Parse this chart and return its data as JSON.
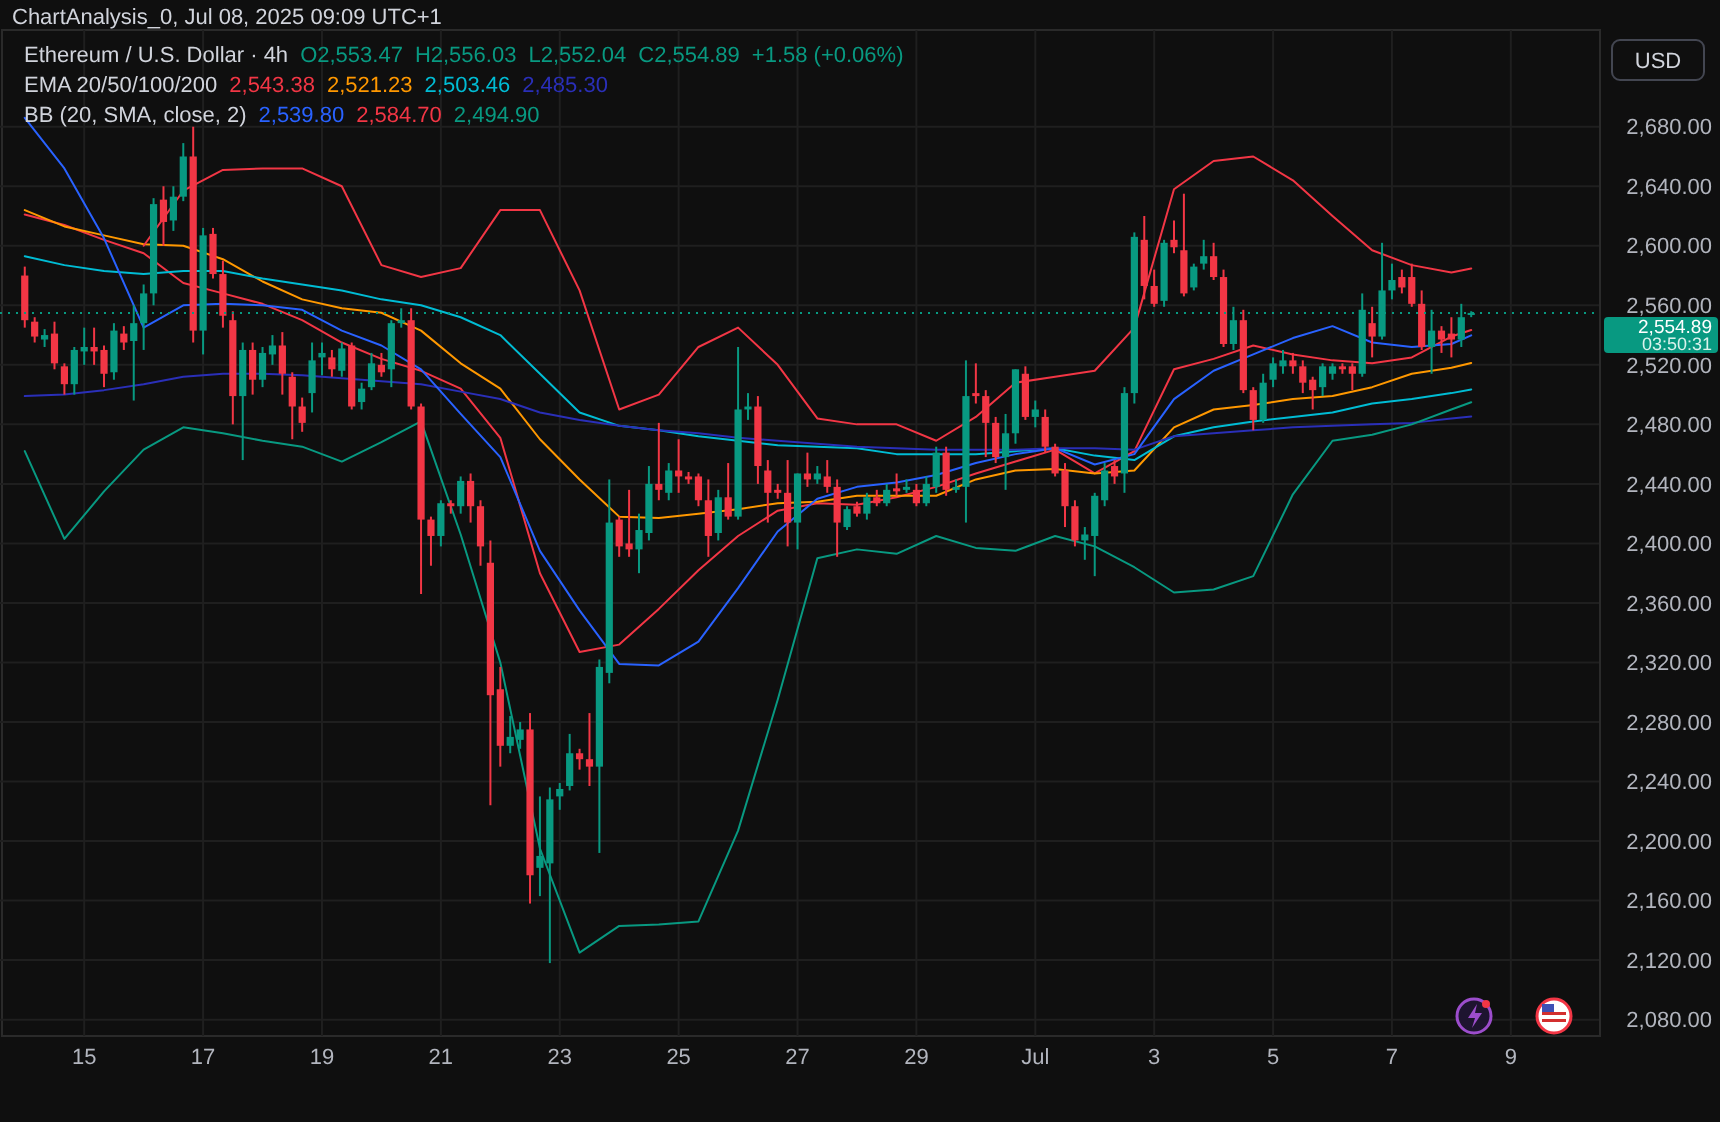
{
  "chart_data": {
    "type": "candlestick",
    "title": "Ethereum / U.S. Dollar · 4h",
    "annotations": [
      "ChartAnalysis_0, Jul 08, 2025 09:09 UTC+1",
      "O2,553.47",
      "H2,556.03",
      "L2,552.04",
      "C2,554.89",
      "+1.58 (+0.06%)",
      "EMA 20/50/100/200",
      "2,543.38",
      "2,521.23",
      "2,503.46",
      "2,485.30",
      "BB (20, SMA, close, 2)",
      "2,539.80",
      "2,584.70",
      "2,494.90",
      "03:50:31",
      "USD"
    ],
    "xlim": [
      "2025-06-13T14:00",
      "2025-07-10T12:00"
    ],
    "xticks": [
      {
        "value": "2025-06-15",
        "label": "15"
      },
      {
        "value": "2025-06-17",
        "label": "17"
      },
      {
        "value": "2025-06-19",
        "label": "19"
      },
      {
        "value": "2025-06-21",
        "label": "21"
      },
      {
        "value": "2025-06-23",
        "label": "23"
      },
      {
        "value": "2025-06-25",
        "label": "25"
      },
      {
        "value": "2025-06-27",
        "label": "27"
      },
      {
        "value": "2025-06-29",
        "label": "29"
      },
      {
        "value": "2025-07-01",
        "label": "Jul"
      },
      {
        "value": "2025-07-03",
        "label": "3"
      },
      {
        "value": "2025-07-05",
        "label": "5"
      },
      {
        "value": "2025-07-07",
        "label": "7"
      },
      {
        "value": "2025-07-09",
        "label": "9"
      }
    ],
    "ylim": [
      2069,
      2745
    ],
    "yticks": [
      {
        "value": 2080,
        "label": "2,080.00"
      },
      {
        "value": 2120,
        "label": "2,120.00"
      },
      {
        "value": 2160,
        "label": "2,160.00"
      },
      {
        "value": 2200,
        "label": "2,200.00"
      },
      {
        "value": 2240,
        "label": "2,240.00"
      },
      {
        "value": 2280,
        "label": "2,280.00"
      },
      {
        "value": 2320,
        "label": "2,320.00"
      },
      {
        "value": 2360,
        "label": "2,360.00"
      },
      {
        "value": 2400,
        "label": "2,400.00"
      },
      {
        "value": 2440,
        "label": "2,440.00"
      },
      {
        "value": 2480,
        "label": "2,480.00"
      },
      {
        "value": 2520,
        "label": "2,520.00"
      },
      {
        "value": 2560,
        "label": "2,560.00"
      },
      {
        "value": 2600,
        "label": "2,600.00"
      },
      {
        "value": 2640,
        "label": "2,640.00"
      },
      {
        "value": 2680,
        "label": "2,680.00"
      }
    ],
    "grid": true,
    "ref_lines": [
      {
        "axis": "y",
        "value": 2554.89,
        "label": "2,554.89",
        "color": "#089981",
        "line_style": "dotted"
      }
    ],
    "x": [
      "2025-06-14T00:00",
      "2025-06-14T04:00",
      "2025-06-14T08:00",
      "2025-06-14T12:00",
      "2025-06-14T16:00",
      "2025-06-14T20:00",
      "2025-06-15T00:00",
      "2025-06-15T04:00",
      "2025-06-15T08:00",
      "2025-06-15T12:00",
      "2025-06-15T16:00",
      "2025-06-15T20:00",
      "2025-06-16T00:00",
      "2025-06-16T04:00",
      "2025-06-16T08:00",
      "2025-06-16T12:00",
      "2025-06-16T16:00",
      "2025-06-16T20:00",
      "2025-06-17T00:00",
      "2025-06-17T04:00",
      "2025-06-17T08:00",
      "2025-06-17T12:00",
      "2025-06-17T16:00",
      "2025-06-17T20:00",
      "2025-06-18T00:00",
      "2025-06-18T04:00",
      "2025-06-18T08:00",
      "2025-06-18T12:00",
      "2025-06-18T16:00",
      "2025-06-18T20:00",
      "2025-06-19T00:00",
      "2025-06-19T04:00",
      "2025-06-19T08:00",
      "2025-06-19T12:00",
      "2025-06-19T16:00",
      "2025-06-19T20:00",
      "2025-06-20T00:00",
      "2025-06-20T04:00",
      "2025-06-20T08:00",
      "2025-06-20T12:00",
      "2025-06-20T16:00",
      "2025-06-20T20:00",
      "2025-06-21T00:00",
      "2025-06-21T04:00",
      "2025-06-21T08:00",
      "2025-06-21T12:00",
      "2025-06-21T16:00",
      "2025-06-21T20:00",
      "2025-06-22T00:00",
      "2025-06-22T04:00",
      "2025-06-22T08:00",
      "2025-06-22T12:00",
      "2025-06-22T16:00",
      "2025-06-22T20:00",
      "2025-06-23T00:00",
      "2025-06-23T04:00",
      "2025-06-23T08:00",
      "2025-06-23T12:00",
      "2025-06-23T16:00",
      "2025-06-23T20:00",
      "2025-06-24T00:00",
      "2025-06-24T04:00",
      "2025-06-24T08:00",
      "2025-06-24T12:00",
      "2025-06-24T16:00",
      "2025-06-24T20:00",
      "2025-06-25T00:00",
      "2025-06-25T04:00",
      "2025-06-25T08:00",
      "2025-06-25T12:00",
      "2025-06-25T16:00",
      "2025-06-25T20:00",
      "2025-06-26T00:00",
      "2025-06-26T04:00",
      "2025-06-26T08:00",
      "2025-06-26T12:00",
      "2025-06-26T16:00",
      "2025-06-26T20:00",
      "2025-06-27T00:00",
      "2025-06-27T04:00",
      "2025-06-27T08:00",
      "2025-06-27T12:00",
      "2025-06-27T16:00",
      "2025-06-27T20:00",
      "2025-06-28T00:00",
      "2025-06-28T04:00",
      "2025-06-28T08:00",
      "2025-06-28T12:00",
      "2025-06-28T16:00",
      "2025-06-28T20:00",
      "2025-06-29T00:00",
      "2025-06-29T04:00",
      "2025-06-29T08:00",
      "2025-06-29T12:00",
      "2025-06-29T16:00",
      "2025-06-29T20:00",
      "2025-06-30T00:00",
      "2025-06-30T04:00",
      "2025-06-30T08:00",
      "2025-06-30T12:00",
      "2025-06-30T16:00",
      "2025-06-30T20:00",
      "2025-07-01T00:00",
      "2025-07-01T04:00",
      "2025-07-01T08:00",
      "2025-07-01T12:00",
      "2025-07-01T16:00",
      "2025-07-01T20:00",
      "2025-07-02T00:00",
      "2025-07-02T04:00",
      "2025-07-02T08:00",
      "2025-07-02T12:00",
      "2025-07-02T16:00",
      "2025-07-02T20:00",
      "2025-07-03T00:00",
      "2025-07-03T04:00",
      "2025-07-03T08:00",
      "2025-07-03T12:00",
      "2025-07-03T16:00",
      "2025-07-03T20:00",
      "2025-07-04T00:00",
      "2025-07-04T04:00",
      "2025-07-04T08:00",
      "2025-07-04T12:00",
      "2025-07-04T16:00",
      "2025-07-04T20:00",
      "2025-07-05T00:00",
      "2025-07-05T04:00",
      "2025-07-05T08:00",
      "2025-07-05T12:00",
      "2025-07-05T16:00",
      "2025-07-05T20:00",
      "2025-07-06T00:00",
      "2025-07-06T04:00",
      "2025-07-06T08:00",
      "2025-07-06T12:00",
      "2025-07-06T16:00",
      "2025-07-06T20:00",
      "2025-07-07T00:00",
      "2025-07-07T04:00",
      "2025-07-07T08:00",
      "2025-07-07T12:00",
      "2025-07-07T16:00",
      "2025-07-07T20:00",
      "2025-07-08T00:00",
      "2025-07-08T04:00",
      "2025-07-08T08:00"
    ],
    "ohlc": [
      [
        2580,
        2586,
        2545,
        2550
      ],
      [
        2549,
        2552,
        2535,
        2539
      ],
      [
        2537,
        2544,
        2532,
        2540
      ],
      [
        2541,
        2549,
        2517,
        2521
      ],
      [
        2519,
        2521,
        2500,
        2507
      ],
      [
        2507,
        2532,
        2500,
        2530
      ],
      [
        2529,
        2545,
        2520,
        2532
      ],
      [
        2532,
        2545,
        2520,
        2529
      ],
      [
        2530,
        2533,
        2505,
        2514
      ],
      [
        2515,
        2548,
        2510,
        2543
      ],
      [
        2541,
        2546,
        2530,
        2535
      ],
      [
        2536,
        2560,
        2496,
        2548
      ],
      [
        2548,
        2574,
        2530,
        2568
      ],
      [
        2568,
        2632,
        2560,
        2628
      ],
      [
        2631,
        2640,
        2600,
        2616
      ],
      [
        2617,
        2640,
        2610,
        2633
      ],
      [
        2633,
        2669,
        2630,
        2660
      ],
      [
        2660,
        2680,
        2535,
        2543
      ],
      [
        2543,
        2612,
        2527,
        2607
      ],
      [
        2608,
        2612,
        2578,
        2581
      ],
      [
        2581,
        2590,
        2545,
        2553
      ],
      [
        2550,
        2556,
        2480,
        2499
      ],
      [
        2499,
        2535,
        2456,
        2530
      ],
      [
        2530,
        2535,
        2500,
        2510
      ],
      [
        2510,
        2532,
        2505,
        2528
      ],
      [
        2527,
        2540,
        2520,
        2533
      ],
      [
        2533,
        2542,
        2500,
        2514
      ],
      [
        2512,
        2515,
        2470,
        2492
      ],
      [
        2492,
        2498,
        2475,
        2481
      ],
      [
        2501,
        2535,
        2488,
        2523
      ],
      [
        2525,
        2535,
        2513,
        2528
      ],
      [
        2525,
        2530,
        2512,
        2517
      ],
      [
        2516,
        2535,
        2512,
        2531
      ],
      [
        2533,
        2535,
        2490,
        2492
      ],
      [
        2495,
        2508,
        2490,
        2504
      ],
      [
        2505,
        2528,
        2503,
        2521
      ],
      [
        2520,
        2528,
        2512,
        2515
      ],
      [
        2517,
        2550,
        2505,
        2548
      ],
      [
        2548,
        2558,
        2545,
        2550
      ],
      [
        2550,
        2558,
        2490,
        2492
      ],
      [
        2492,
        2494,
        2366,
        2416
      ],
      [
        2416,
        2418,
        2385,
        2405
      ],
      [
        2405,
        2429,
        2398,
        2427
      ],
      [
        2427,
        2429,
        2420,
        2425
      ],
      [
        2425,
        2445,
        2420,
        2442
      ],
      [
        2442,
        2447,
        2414,
        2425
      ],
      [
        2425,
        2429,
        2385,
        2398
      ],
      [
        2387,
        2402,
        2224,
        2298
      ],
      [
        2302,
        2317,
        2250,
        2264
      ],
      [
        2264,
        2284,
        2259,
        2270
      ],
      [
        2268,
        2280,
        2262,
        2275
      ],
      [
        2275,
        2286,
        2158,
        2177
      ],
      [
        2182,
        2230,
        2163,
        2190
      ],
      [
        2185,
        2236,
        2118,
        2228
      ],
      [
        2230,
        2239,
        2221,
        2235
      ],
      [
        2237,
        2272,
        2234,
        2259
      ],
      [
        2259,
        2262,
        2248,
        2255
      ],
      [
        2255,
        2286,
        2237,
        2250
      ],
      [
        2250,
        2322,
        2192,
        2317
      ],
      [
        2313,
        2443,
        2306,
        2414
      ],
      [
        2416,
        2418,
        2391,
        2398
      ],
      [
        2400,
        2436,
        2391,
        2396
      ],
      [
        2396,
        2420,
        2380,
        2409
      ],
      [
        2407,
        2452,
        2402,
        2440
      ],
      [
        2440,
        2481,
        2429,
        2436
      ],
      [
        2434,
        2454,
        2429,
        2449
      ],
      [
        2449,
        2470,
        2434,
        2445
      ],
      [
        2445,
        2448,
        2440,
        2443
      ],
      [
        2445,
        2447,
        2425,
        2429
      ],
      [
        2429,
        2443,
        2391,
        2405
      ],
      [
        2407,
        2436,
        2402,
        2431
      ],
      [
        2431,
        2454,
        2416,
        2418
      ],
      [
        2418,
        2532,
        2416,
        2490
      ],
      [
        2490,
        2501,
        2483,
        2492
      ],
      [
        2492,
        2499,
        2440,
        2452
      ],
      [
        2449,
        2456,
        2414,
        2434
      ],
      [
        2436,
        2440,
        2430,
        2434
      ],
      [
        2434,
        2456,
        2398,
        2414
      ],
      [
        2414,
        2447,
        2396,
        2447
      ],
      [
        2447,
        2461,
        2438,
        2443
      ],
      [
        2443,
        2452,
        2440,
        2447
      ],
      [
        2445,
        2456,
        2434,
        2438
      ],
      [
        2438,
        2443,
        2391,
        2414
      ],
      [
        2411,
        2425,
        2409,
        2423
      ],
      [
        2425,
        2428,
        2418,
        2420
      ],
      [
        2420,
        2434,
        2416,
        2431
      ],
      [
        2431,
        2436,
        2425,
        2427
      ],
      [
        2427,
        2440,
        2425,
        2436
      ],
      [
        2437,
        2447,
        2432,
        2435
      ],
      [
        2436,
        2443,
        2434,
        2438
      ],
      [
        2436,
        2440,
        2425,
        2427
      ],
      [
        2427,
        2445,
        2425,
        2440
      ],
      [
        2438,
        2465,
        2434,
        2461
      ],
      [
        2461,
        2465,
        2432,
        2436
      ],
      [
        2436,
        2443,
        2434,
        2438
      ],
      [
        2438,
        2523,
        2414,
        2499
      ],
      [
        2501,
        2521,
        2494,
        2499
      ],
      [
        2499,
        2503,
        2458,
        2481
      ],
      [
        2481,
        2485,
        2454,
        2458
      ],
      [
        2458,
        2487,
        2436,
        2474
      ],
      [
        2474,
        2517,
        2467,
        2517
      ],
      [
        2514,
        2519,
        2483,
        2485
      ],
      [
        2485,
        2496,
        2478,
        2490
      ],
      [
        2485,
        2490,
        2461,
        2465
      ],
      [
        2465,
        2467,
        2445,
        2447
      ],
      [
        2449,
        2454,
        2411,
        2425
      ],
      [
        2425,
        2429,
        2398,
        2402
      ],
      [
        2402,
        2411,
        2389,
        2406
      ],
      [
        2405,
        2434,
        2378,
        2432
      ],
      [
        2429,
        2454,
        2425,
        2449
      ],
      [
        2452,
        2456,
        2440,
        2445
      ],
      [
        2447,
        2505,
        2434,
        2501
      ],
      [
        2501,
        2609,
        2494,
        2606
      ],
      [
        2604,
        2620,
        2564,
        2573
      ],
      [
        2573,
        2584,
        2559,
        2561
      ],
      [
        2563,
        2604,
        2559,
        2602
      ],
      [
        2604,
        2617,
        2595,
        2599
      ],
      [
        2597,
        2635,
        2566,
        2568
      ],
      [
        2572,
        2588,
        2570,
        2586
      ],
      [
        2588,
        2604,
        2584,
        2593
      ],
      [
        2593,
        2602,
        2577,
        2579
      ],
      [
        2579,
        2584,
        2532,
        2534
      ],
      [
        2534,
        2559,
        2530,
        2550
      ],
      [
        2550,
        2557,
        2501,
        2503
      ],
      [
        2503,
        2505,
        2476,
        2483
      ],
      [
        2483,
        2514,
        2481,
        2508
      ],
      [
        2510,
        2525,
        2505,
        2521
      ],
      [
        2519,
        2530,
        2514,
        2523
      ],
      [
        2523,
        2528,
        2514,
        2519
      ],
      [
        2519,
        2523,
        2501,
        2508
      ],
      [
        2510,
        2512,
        2490,
        2503
      ],
      [
        2505,
        2521,
        2499,
        2519
      ],
      [
        2514,
        2521,
        2510,
        2519
      ],
      [
        2519,
        2521,
        2514,
        2517
      ],
      [
        2519,
        2521,
        2503,
        2514
      ],
      [
        2514,
        2568,
        2512,
        2557
      ],
      [
        2548,
        2559,
        2525,
        2539
      ],
      [
        2539,
        2602,
        2537,
        2570
      ],
      [
        2570,
        2588,
        2564,
        2577
      ],
      [
        2579,
        2584,
        2568,
        2572
      ],
      [
        2579,
        2588,
        2559,
        2561
      ],
      [
        2561,
        2570,
        2530,
        2532
      ],
      [
        2532,
        2557,
        2514,
        2543
      ],
      [
        2543,
        2546,
        2528,
        2537
      ],
      [
        2541,
        2552,
        2525,
        2537
      ],
      [
        2537,
        2561,
        2532,
        2552
      ],
      [
        2553.47,
        2556.03,
        2552.04,
        2554.89
      ]
    ],
    "series": [
      {
        "type": "line",
        "color": "#f23645",
        "x": [
          "2025-06-14T00:00",
          "2025-06-14T16:00",
          "2025-06-15T08:00",
          "2025-06-16T00:00",
          "2025-06-16T16:00",
          "2025-06-17T08:00",
          "2025-06-18T00:00",
          "2025-06-18T16:00",
          "2025-06-19T08:00",
          "2025-06-20T00:00",
          "2025-06-20T16:00",
          "2025-06-21T08:00",
          "2025-06-22T00:00",
          "2025-06-22T16:00",
          "2025-06-23T08:00",
          "2025-06-24T00:00",
          "2025-06-24T16:00",
          "2025-06-25T08:00",
          "2025-06-26T00:00",
          "2025-06-26T16:00",
          "2025-06-27T08:00",
          "2025-06-28T00:00",
          "2025-06-28T16:00",
          "2025-06-29T08:00",
          "2025-06-30T00:00",
          "2025-06-30T16:00",
          "2025-07-01T08:00",
          "2025-07-02T00:00",
          "2025-07-02T16:00",
          "2025-07-03T08:00",
          "2025-07-04T00:00",
          "2025-07-04T16:00",
          "2025-07-05T08:00",
          "2025-07-06T00:00",
          "2025-07-06T16:00",
          "2025-07-07T08:00",
          "2025-07-08T00:00",
          "2025-07-08T08:00"
        ],
        "values": [
          2621,
          2614,
          2604,
          2595,
          2575,
          2568,
          2561,
          2550,
          2535,
          2524,
          2516,
          2504,
          2471,
          2380,
          2327,
          2332,
          2356,
          2382,
          2405,
          2422,
          2427,
          2426,
          2431,
          2438,
          2447,
          2455,
          2463,
          2447,
          2462,
          2517,
          2524,
          2533,
          2527,
          2523,
          2521,
          2525,
          2539,
          2543.38
        ]
      },
      {
        "type": "line",
        "color": "#ff9800",
        "x": [
          "2025-06-14T00:00",
          "2025-06-14T16:00",
          "2025-06-15T08:00",
          "2025-06-16T00:00",
          "2025-06-16T16:00",
          "2025-06-17T08:00",
          "2025-06-18T00:00",
          "2025-06-18T16:00",
          "2025-06-19T08:00",
          "2025-06-20T00:00",
          "2025-06-20T16:00",
          "2025-06-21T08:00",
          "2025-06-22T00:00",
          "2025-06-22T16:00",
          "2025-06-23T08:00",
          "2025-06-24T00:00",
          "2025-06-24T16:00",
          "2025-06-25T08:00",
          "2025-06-26T00:00",
          "2025-06-26T16:00",
          "2025-06-27T08:00",
          "2025-06-28T00:00",
          "2025-06-28T16:00",
          "2025-06-29T08:00",
          "2025-06-30T00:00",
          "2025-06-30T16:00",
          "2025-07-01T08:00",
          "2025-07-02T00:00",
          "2025-07-02T16:00",
          "2025-07-03T08:00",
          "2025-07-04T00:00",
          "2025-07-04T16:00",
          "2025-07-05T08:00",
          "2025-07-06T00:00",
          "2025-07-06T16:00",
          "2025-07-07T08:00",
          "2025-07-08T00:00",
          "2025-07-08T08:00"
        ],
        "values": [
          2624,
          2613,
          2607,
          2601,
          2600,
          2591,
          2576,
          2564,
          2558,
          2555,
          2543,
          2521,
          2504,
          2470,
          2443,
          2418,
          2417,
          2420,
          2423,
          2427,
          2428,
          2432,
          2432,
          2432,
          2443,
          2449,
          2450,
          2447,
          2449,
          2478,
          2490,
          2493,
          2497,
          2499,
          2505,
          2514,
          2518,
          2521.23
        ]
      },
      {
        "type": "line",
        "color": "#00bcd4",
        "x": [
          "2025-06-14T00:00",
          "2025-06-14T16:00",
          "2025-06-15T08:00",
          "2025-06-16T00:00",
          "2025-06-16T16:00",
          "2025-06-17T08:00",
          "2025-06-18T00:00",
          "2025-06-18T16:00",
          "2025-06-19T08:00",
          "2025-06-20T00:00",
          "2025-06-20T16:00",
          "2025-06-21T08:00",
          "2025-06-22T00:00",
          "2025-06-22T16:00",
          "2025-06-23T08:00",
          "2025-06-24T00:00",
          "2025-06-24T16:00",
          "2025-06-25T08:00",
          "2025-06-26T00:00",
          "2025-06-26T16:00",
          "2025-06-27T08:00",
          "2025-06-28T00:00",
          "2025-06-28T16:00",
          "2025-06-29T08:00",
          "2025-06-30T00:00",
          "2025-06-30T16:00",
          "2025-07-01T08:00",
          "2025-07-02T00:00",
          "2025-07-02T16:00",
          "2025-07-03T08:00",
          "2025-07-04T00:00",
          "2025-07-04T16:00",
          "2025-07-05T08:00",
          "2025-07-06T00:00",
          "2025-07-06T16:00",
          "2025-07-07T08:00",
          "2025-07-08T00:00",
          "2025-07-08T08:00"
        ],
        "values": [
          2593,
          2587,
          2583,
          2581,
          2583,
          2583,
          2578,
          2574,
          2570,
          2564,
          2560,
          2552,
          2540,
          2514,
          2488,
          2479,
          2476,
          2472,
          2469,
          2466,
          2465,
          2464,
          2460,
          2460,
          2460,
          2462,
          2464,
          2459,
          2456,
          2472,
          2478,
          2482,
          2485,
          2488,
          2494,
          2497,
          2501,
          2503.46
        ]
      },
      {
        "type": "line",
        "color": "#2a2fb8",
        "x": [
          "2025-06-14T00:00",
          "2025-06-14T16:00",
          "2025-06-15T08:00",
          "2025-06-16T00:00",
          "2025-06-16T16:00",
          "2025-06-17T08:00",
          "2025-06-18T00:00",
          "2025-06-18T16:00",
          "2025-06-19T08:00",
          "2025-06-20T00:00",
          "2025-06-20T16:00",
          "2025-06-21T08:00",
          "2025-06-22T00:00",
          "2025-06-22T16:00",
          "2025-06-23T08:00",
          "2025-06-24T00:00",
          "2025-06-24T16:00",
          "2025-06-25T08:00",
          "2025-06-26T00:00",
          "2025-06-26T16:00",
          "2025-06-27T08:00",
          "2025-06-28T00:00",
          "2025-06-28T16:00",
          "2025-06-29T08:00",
          "2025-06-30T00:00",
          "2025-06-30T16:00",
          "2025-07-01T08:00",
          "2025-07-02T00:00",
          "2025-07-02T16:00",
          "2025-07-03T08:00",
          "2025-07-04T00:00",
          "2025-07-04T16:00",
          "2025-07-05T08:00",
          "2025-07-06T00:00",
          "2025-07-06T16:00",
          "2025-07-07T08:00",
          "2025-07-08T00:00",
          "2025-07-08T08:00"
        ],
        "values": [
          2499,
          2500,
          2503,
          2507,
          2512,
          2514,
          2514,
          2513,
          2511,
          2509,
          2507,
          2502,
          2497,
          2488,
          2483,
          2479,
          2476,
          2474,
          2471,
          2469,
          2467,
          2465,
          2464,
          2463,
          2463,
          2463,
          2464,
          2464,
          2463,
          2472,
          2474,
          2476,
          2478,
          2479,
          2480,
          2481,
          2484,
          2485.3
        ]
      },
      {
        "type": "line",
        "color": "#2962ff",
        "x": [
          "2025-06-14T00:00",
          "2025-06-14T16:00",
          "2025-06-15T08:00",
          "2025-06-16T00:00",
          "2025-06-16T16:00",
          "2025-06-17T08:00",
          "2025-06-18T00:00",
          "2025-06-18T16:00",
          "2025-06-19T08:00",
          "2025-06-20T00:00",
          "2025-06-20T16:00",
          "2025-06-21T08:00",
          "2025-06-22T00:00",
          "2025-06-22T16:00",
          "2025-06-23T08:00",
          "2025-06-24T00:00",
          "2025-06-24T16:00",
          "2025-06-25T08:00",
          "2025-06-26T00:00",
          "2025-06-26T16:00",
          "2025-06-27T08:00",
          "2025-06-28T00:00",
          "2025-06-28T16:00",
          "2025-06-29T08:00",
          "2025-06-30T00:00",
          "2025-06-30T16:00",
          "2025-07-01T08:00",
          "2025-07-02T00:00",
          "2025-07-02T16:00",
          "2025-07-03T08:00",
          "2025-07-04T00:00",
          "2025-07-04T16:00",
          "2025-07-05T08:00",
          "2025-07-06T00:00",
          "2025-07-06T16:00",
          "2025-07-07T08:00",
          "2025-07-08T00:00",
          "2025-07-08T08:00"
        ],
        "values": [
          2686,
          2652,
          2605,
          2545,
          2560,
          2561,
          2560,
          2557,
          2543,
          2533,
          2517,
          2487,
          2458,
          2395,
          2355,
          2319,
          2318,
          2334,
          2370,
          2408,
          2430,
          2438,
          2441,
          2446,
          2454,
          2460,
          2464,
          2453,
          2460,
          2497,
          2516,
          2527,
          2538,
          2546,
          2535,
          2532,
          2534,
          2539.8
        ]
      },
      {
        "type": "line",
        "color": "#f23645",
        "x": [
          "2025-06-16T00:00",
          "2025-06-16T16:00",
          "2025-06-17T08:00",
          "2025-06-18T00:00",
          "2025-06-18T16:00",
          "2025-06-19T08:00",
          "2025-06-20T00:00",
          "2025-06-20T16:00",
          "2025-06-21T08:00",
          "2025-06-22T00:00",
          "2025-06-22T16:00",
          "2025-06-23T08:00",
          "2025-06-24T00:00",
          "2025-06-24T16:00",
          "2025-06-25T08:00",
          "2025-06-26T00:00",
          "2025-06-26T16:00",
          "2025-06-27T08:00",
          "2025-06-28T00:00",
          "2025-06-28T16:00",
          "2025-06-29T08:00",
          "2025-06-30T00:00",
          "2025-06-30T16:00",
          "2025-07-01T08:00",
          "2025-07-02T00:00",
          "2025-07-02T16:00",
          "2025-07-03T08:00",
          "2025-07-04T00:00",
          "2025-07-04T16:00",
          "2025-07-05T08:00",
          "2025-07-06T00:00",
          "2025-07-06T16:00",
          "2025-07-07T08:00",
          "2025-07-08T00:00",
          "2025-07-08T08:00"
        ],
        "values": [
          2600,
          2637,
          2651,
          2652,
          2652,
          2640,
          2587,
          2579,
          2585,
          2624,
          2624,
          2570,
          2490,
          2500,
          2532,
          2545,
          2520,
          2484,
          2480,
          2480,
          2469,
          2485,
          2508,
          2512,
          2516,
          2545,
          2638,
          2657,
          2660,
          2644,
          2620,
          2597,
          2587,
          2582,
          2584.7
        ]
      },
      {
        "type": "line",
        "color": "#089981",
        "x": [
          "2025-06-14T00:00",
          "2025-06-14T16:00",
          "2025-06-15T08:00",
          "2025-06-16T00:00",
          "2025-06-16T16:00",
          "2025-06-17T08:00",
          "2025-06-18T00:00",
          "2025-06-18T16:00",
          "2025-06-19T08:00",
          "2025-06-20T00:00",
          "2025-06-20T16:00",
          "2025-06-21T08:00",
          "2025-06-22T00:00",
          "2025-06-22T16:00",
          "2025-06-23T08:00",
          "2025-06-24T00:00",
          "2025-06-24T16:00",
          "2025-06-25T08:00",
          "2025-06-26T00:00",
          "2025-06-26T16:00",
          "2025-06-27T08:00",
          "2025-06-28T00:00",
          "2025-06-28T16:00",
          "2025-06-29T08:00",
          "2025-06-30T00:00",
          "2025-06-30T16:00",
          "2025-07-01T08:00",
          "2025-07-02T00:00",
          "2025-07-02T16:00",
          "2025-07-03T08:00",
          "2025-07-04T00:00",
          "2025-07-04T16:00",
          "2025-07-05T08:00",
          "2025-07-06T00:00",
          "2025-07-06T16:00",
          "2025-07-07T08:00",
          "2025-07-08T00:00",
          "2025-07-08T08:00"
        ],
        "values": [
          2462,
          2403,
          2435,
          2463,
          2478,
          2474,
          2469,
          2465,
          2455,
          2468,
          2482,
          2406,
          2320,
          2195,
          2125,
          2143,
          2144,
          2146,
          2207,
          2295,
          2390,
          2396,
          2393,
          2405,
          2397,
          2395,
          2405,
          2398,
          2384,
          2367,
          2369,
          2378,
          2433,
          2469,
          2473,
          2480,
          2490,
          2494.9
        ]
      }
    ]
  }
}
